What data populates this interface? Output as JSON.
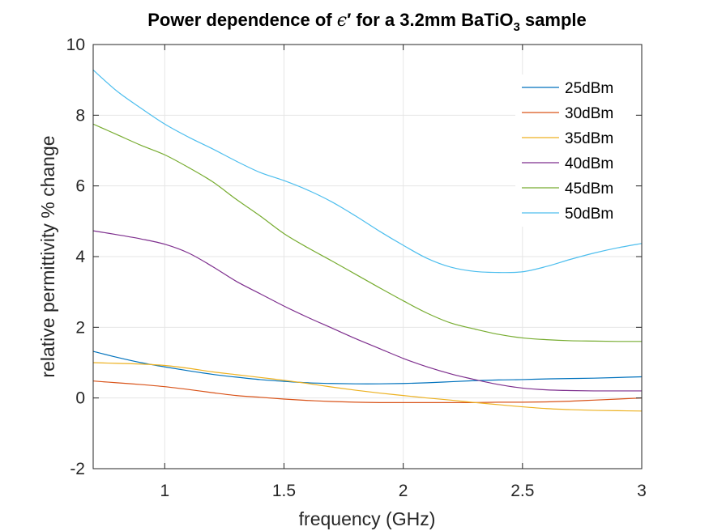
{
  "chart_data": {
    "type": "line",
    "title": "Power dependence of ε′ for a 3.2mm BaTiO₃ sample",
    "title_parts": {
      "prefix": "Power dependence of ",
      "epsilon": "ϵ",
      "prime": "′",
      "middle": " for a 3.2mm BaTiO",
      "subscript": "3",
      "suffix": " sample"
    },
    "xlabel": "frequency (GHz)",
    "ylabel": "relative permittivity % change",
    "xlim": [
      0.7,
      3
    ],
    "ylim": [
      -2,
      10
    ],
    "xticks": [
      1,
      1.5,
      2,
      2.5,
      3
    ],
    "xtick_labels": [
      "1",
      "1.5",
      "2",
      "2.5",
      "3"
    ],
    "yticks": [
      -2,
      0,
      2,
      4,
      6,
      8,
      10
    ],
    "ytick_labels": [
      "-2",
      "0",
      "2",
      "4",
      "6",
      "8",
      "10"
    ],
    "grid": true,
    "legend_position": "top-right",
    "x": [
      0.7,
      0.8,
      0.9,
      1.0,
      1.1,
      1.2,
      1.3,
      1.4,
      1.5,
      1.6,
      1.7,
      1.8,
      1.9,
      2.0,
      2.1,
      2.2,
      2.3,
      2.4,
      2.5,
      2.6,
      2.7,
      2.8,
      2.9,
      3.0
    ],
    "series": [
      {
        "name": "25dBm",
        "color": "#0072BD",
        "values": [
          1.32,
          1.15,
          1.0,
          0.88,
          0.77,
          0.67,
          0.59,
          0.52,
          0.47,
          0.43,
          0.41,
          0.4,
          0.4,
          0.41,
          0.43,
          0.46,
          0.49,
          0.51,
          0.52,
          0.54,
          0.55,
          0.56,
          0.58,
          0.6
        ]
      },
      {
        "name": "30dBm",
        "color": "#D95319",
        "values": [
          0.48,
          0.43,
          0.38,
          0.32,
          0.24,
          0.15,
          0.07,
          0.02,
          -0.03,
          -0.07,
          -0.1,
          -0.12,
          -0.13,
          -0.13,
          -0.13,
          -0.13,
          -0.13,
          -0.12,
          -0.12,
          -0.11,
          -0.09,
          -0.06,
          -0.03,
          0.0
        ]
      },
      {
        "name": "35dBm",
        "color": "#EDB120",
        "values": [
          1.0,
          0.98,
          0.96,
          0.92,
          0.84,
          0.74,
          0.66,
          0.58,
          0.5,
          0.41,
          0.31,
          0.22,
          0.14,
          0.07,
          0.0,
          -0.06,
          -0.13,
          -0.19,
          -0.25,
          -0.3,
          -0.33,
          -0.35,
          -0.36,
          -0.37
        ]
      },
      {
        "name": "40dBm",
        "color": "#7E2F8E",
        "values": [
          4.73,
          4.62,
          4.5,
          4.35,
          4.1,
          3.72,
          3.3,
          2.95,
          2.6,
          2.28,
          1.98,
          1.68,
          1.4,
          1.12,
          0.88,
          0.68,
          0.52,
          0.38,
          0.28,
          0.23,
          0.21,
          0.2,
          0.2,
          0.2
        ]
      },
      {
        "name": "45dBm",
        "color": "#77AC30",
        "values": [
          7.75,
          7.45,
          7.15,
          6.88,
          6.52,
          6.12,
          5.62,
          5.15,
          4.65,
          4.25,
          3.88,
          3.5,
          3.12,
          2.75,
          2.4,
          2.12,
          1.95,
          1.8,
          1.7,
          1.65,
          1.62,
          1.61,
          1.6,
          1.6
        ]
      },
      {
        "name": "50dBm",
        "color": "#4DBEEE",
        "values": [
          9.28,
          8.68,
          8.2,
          7.75,
          7.38,
          7.05,
          6.7,
          6.38,
          6.15,
          5.88,
          5.55,
          5.15,
          4.72,
          4.32,
          3.95,
          3.7,
          3.58,
          3.55,
          3.57,
          3.72,
          3.92,
          4.1,
          4.25,
          4.37
        ]
      }
    ]
  }
}
